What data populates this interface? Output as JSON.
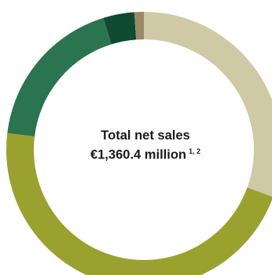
{
  "chart_data": {
    "type": "pie",
    "variant": "donut",
    "title": "Total net sales",
    "subtitle": "€1,360.4 million",
    "footnote_markers": "1, 2",
    "unit": "percent of total",
    "slices": [
      {
        "value": 30.2,
        "color": "#d0c9a6"
      },
      {
        "value": 45.8,
        "color": "#9aa12f"
      },
      {
        "value": 18.1,
        "color": "#2b7450"
      },
      {
        "value": 3.6,
        "color": "#0f4a33"
      },
      {
        "value": 1.1,
        "color": "#9a8a66"
      }
    ]
  }
}
